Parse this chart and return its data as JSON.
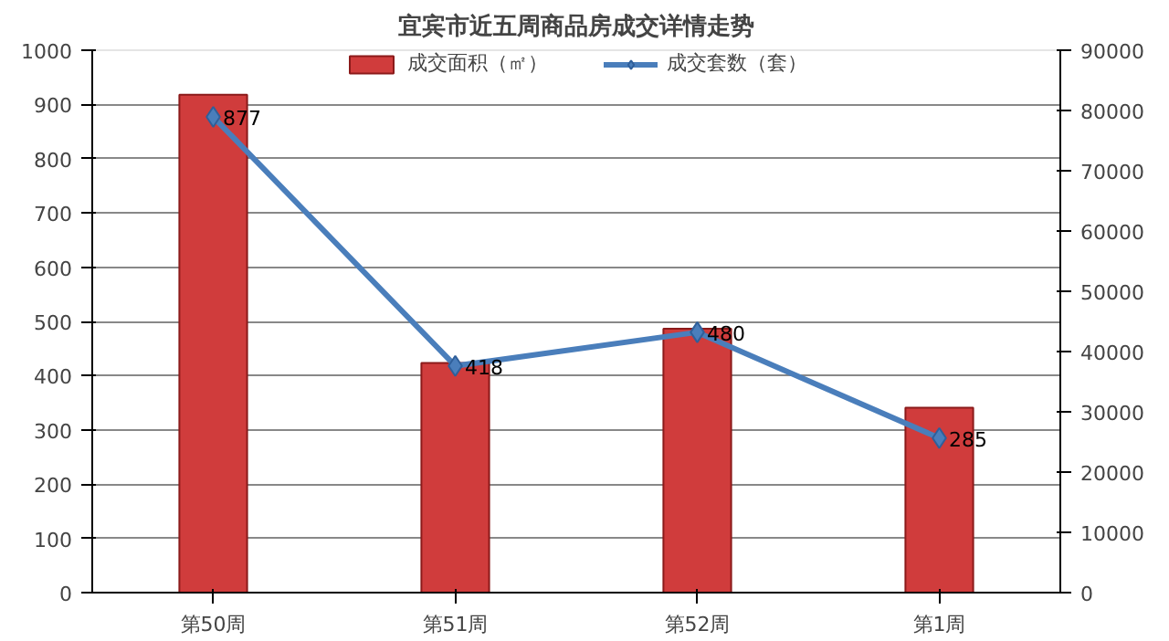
{
  "chart_data": {
    "type": "bar",
    "title": "宜宾市近五周商品房成交详情走势",
    "categories": [
      "第50周",
      "第51周",
      "第52周",
      "第1周"
    ],
    "series": [
      {
        "name": "成交面积（㎡）",
        "axis": "y2",
        "color": "#d03c3c",
        "values": [
          82600,
          38100,
          43800,
          30700
        ]
      },
      {
        "name": "成交套数（套）",
        "type": "line",
        "color": "#4a7ebb",
        "values": [
          877,
          418,
          480,
          285
        ],
        "value_labels": [
          "877",
          "418",
          "480",
          "285"
        ],
        "marker": "diamond"
      }
    ],
    "ylim": [
      0,
      1000
    ],
    "yticks": [
      0,
      100,
      200,
      300,
      400,
      500,
      600,
      700,
      800,
      900,
      1000
    ],
    "y2lim": [
      0,
      90000
    ],
    "y2ticks": [
      0,
      10000,
      20000,
      30000,
      40000,
      50000,
      60000,
      70000,
      80000,
      90000
    ],
    "grid": "y",
    "legend": "top"
  }
}
